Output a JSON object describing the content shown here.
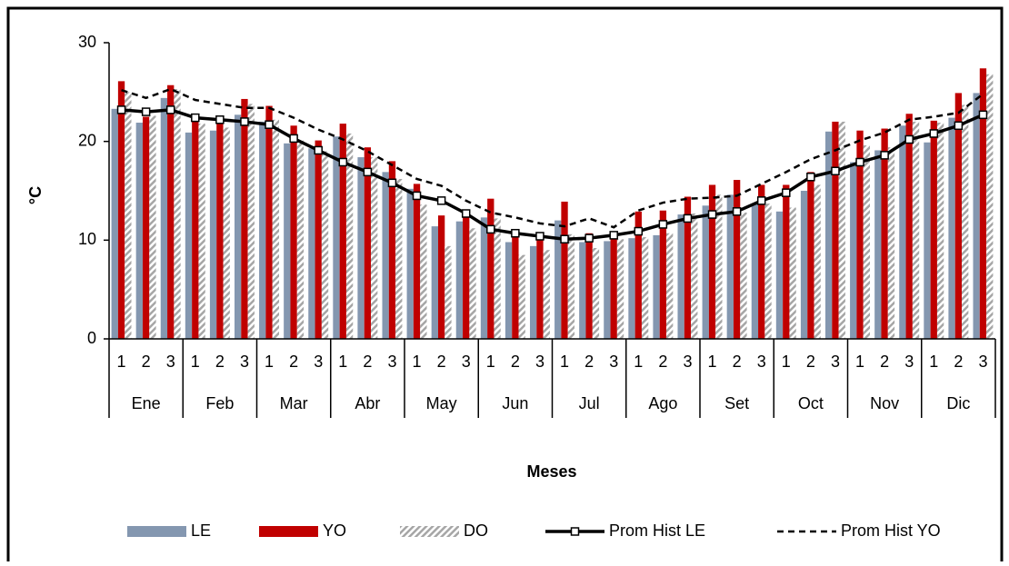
{
  "chart_data": {
    "type": "bar",
    "y_label": "°C",
    "x_label": "Meses",
    "categories": [
      "1",
      "2",
      "3",
      "1",
      "2",
      "3",
      "1",
      "2",
      "3",
      "1",
      "2",
      "3",
      "1",
      "2",
      "3",
      "1",
      "2",
      "3",
      "1",
      "2",
      "3",
      "1",
      "2",
      "3",
      "1",
      "2",
      "3",
      "1",
      "2",
      "3",
      "1",
      "2",
      "3",
      "1",
      "2",
      "3"
    ],
    "groups": [
      "Ene",
      "Feb",
      "Mar",
      "Abr",
      "May",
      "Jun",
      "Jul",
      "Ago",
      "Set",
      "Oct",
      "Nov",
      "Dic"
    ],
    "ylim": [
      0,
      30
    ],
    "yticks": [
      0,
      10,
      20,
      30
    ],
    "legend": "bottom",
    "series": [
      {
        "name": "LE",
        "type": "bar",
        "color": "#8497b0",
        "values": [
          23.3,
          21.9,
          24.4,
          20.9,
          21.1,
          22.7,
          22.0,
          19.8,
          19.3,
          20.5,
          18.4,
          16.9,
          15.2,
          11.4,
          11.9,
          12.3,
          9.8,
          9.4,
          12.0,
          9.8,
          9.9,
          10.2,
          10.5,
          12.6,
          13.5,
          14.6,
          13.7,
          12.9,
          15.0,
          21.0,
          17.9,
          19.1,
          21.6,
          19.9,
          22.4,
          24.9
        ]
      },
      {
        "name": "YO",
        "type": "bar",
        "color": "#c00000",
        "values": [
          26.1,
          22.5,
          25.7,
          22.3,
          22.3,
          24.3,
          23.6,
          21.6,
          20.1,
          21.8,
          19.4,
          18.0,
          15.7,
          12.5,
          12.5,
          14.2,
          10.8,
          10.6,
          13.9,
          10.7,
          10.9,
          12.9,
          13.0,
          14.4,
          15.6,
          16.1,
          15.6,
          15.6,
          16.9,
          22.0,
          21.1,
          21.3,
          22.8,
          22.1,
          24.9,
          27.4
        ]
      },
      {
        "name": "DO",
        "type": "bar",
        "color": "#a6a6a6",
        "hatch": true,
        "values": [
          25.0,
          22.6,
          25.3,
          21.8,
          21.4,
          23.8,
          22.2,
          20.1,
          19.0,
          20.8,
          18.4,
          16.2,
          13.6,
          9.4,
          11.2,
          12.2,
          8.5,
          9.0,
          10.6,
          9.2,
          10.1,
          10.3,
          10.7,
          12.7,
          14.6,
          12.8,
          13.7,
          13.3,
          15.6,
          22.0,
          19.6,
          19.4,
          22.0,
          21.9,
          23.7,
          26.8
        ]
      },
      {
        "name": "Prom Hist LE",
        "type": "line",
        "color": "#000000",
        "marker": "square",
        "values": [
          23.2,
          23.0,
          23.2,
          22.4,
          22.2,
          22.0,
          21.7,
          20.3,
          19.1,
          17.9,
          16.9,
          15.8,
          14.5,
          14.0,
          12.7,
          11.1,
          10.7,
          10.4,
          10.1,
          10.2,
          10.5,
          10.9,
          11.6,
          12.2,
          12.6,
          12.9,
          14.0,
          14.8,
          16.4,
          17.0,
          17.9,
          18.6,
          20.2,
          20.8,
          21.6,
          22.7
        ]
      },
      {
        "name": "Prom Hist YO",
        "type": "line",
        "color": "#000000",
        "dash": true,
        "values": [
          25.2,
          24.4,
          25.3,
          24.2,
          23.8,
          23.4,
          23.4,
          22.4,
          21.2,
          20.2,
          19.0,
          17.6,
          16.2,
          15.5,
          14.0,
          12.8,
          12.3,
          11.7,
          11.4,
          12.2,
          11.3,
          13.0,
          13.8,
          14.2,
          14.3,
          14.5,
          15.7,
          16.9,
          18.2,
          19.1,
          20.1,
          20.9,
          22.2,
          22.5,
          22.9,
          24.8
        ]
      }
    ]
  }
}
